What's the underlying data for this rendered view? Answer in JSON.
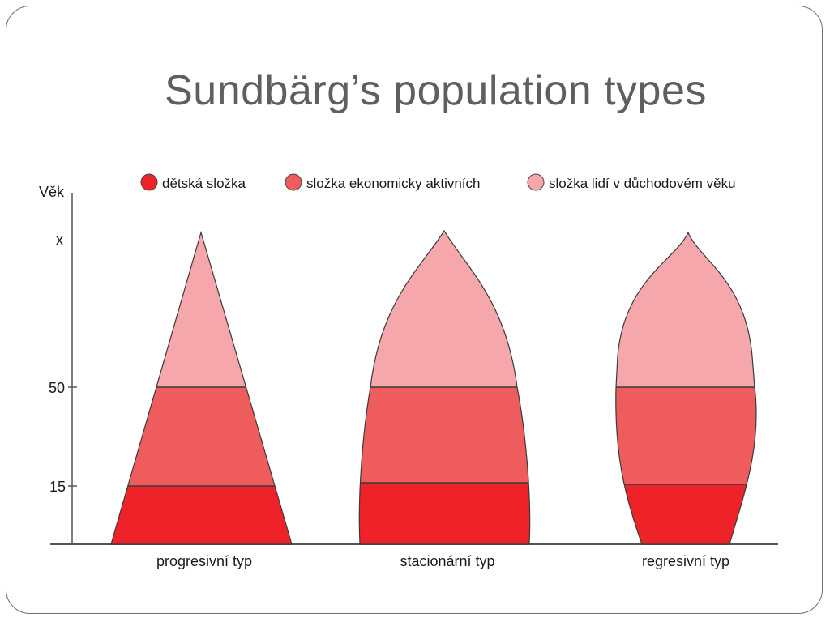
{
  "slide": {
    "title": "Sundbärg’s population types"
  },
  "diagram": {
    "y_axis_label": "Věk",
    "y_ticks": [
      "x",
      "50",
      "15"
    ],
    "legend": [
      {
        "label": "dětská složka",
        "color": "#ee2229"
      },
      {
        "label": "složka ekonomicky aktivních",
        "color": "#ef5c5e"
      },
      {
        "label": "složka lidí v důchodovém věku",
        "color": "#f5a7ab"
      }
    ],
    "types": [
      {
        "label": "progresivní typ"
      },
      {
        "label": "stacionární typ"
      },
      {
        "label": "regresivní typ"
      }
    ],
    "colors": {
      "child": "#ee2229",
      "working": "#ef5c5e",
      "retired": "#f5a7ab",
      "axis": "#555555",
      "divider": "#3a3a3a"
    }
  }
}
